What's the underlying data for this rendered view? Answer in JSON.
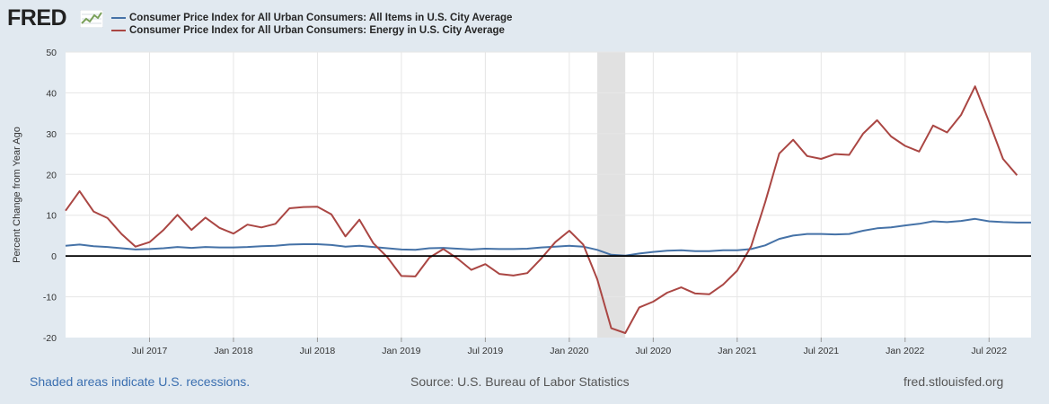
{
  "header": {
    "logo_text": "FRED",
    "logo_icon": "fred-line-chart-icon"
  },
  "legend": [
    {
      "label": "Consumer Price Index for All Urban Consumers: All Items in U.S. City Average",
      "color": "#4572a7"
    },
    {
      "label": "Consumer Price Index for All Urban Consumers: Energy in U.S. City Average",
      "color": "#aa4643"
    }
  ],
  "footer": {
    "left": "Shaded areas indicate U.S. recessions.",
    "center": "Source: U.S. Bureau of Labor Statistics",
    "right": "fred.stlouisfed.org"
  },
  "chart_data": {
    "type": "line",
    "title": "",
    "xlabel": "",
    "ylabel": "Percent Change from Year Ago",
    "ylim": [
      -20,
      50
    ],
    "yticks": [
      50,
      40,
      30,
      20,
      10,
      0,
      -10,
      -20
    ],
    "x_range": [
      "2017-01",
      "2022-10"
    ],
    "xticks": [
      {
        "label": "Jul 2017",
        "month": "2017-07"
      },
      {
        "label": "Jan 2018",
        "month": "2018-01"
      },
      {
        "label": "Jul 2018",
        "month": "2018-07"
      },
      {
        "label": "Jan 2019",
        "month": "2019-01"
      },
      {
        "label": "Jul 2019",
        "month": "2019-07"
      },
      {
        "label": "Jan 2020",
        "month": "2020-01"
      },
      {
        "label": "Jul 2020",
        "month": "2020-07"
      },
      {
        "label": "Jan 2021",
        "month": "2021-01"
      },
      {
        "label": "Jul 2021",
        "month": "2021-07"
      },
      {
        "label": "Jan 2022",
        "month": "2022-01"
      },
      {
        "label": "Jul 2022",
        "month": "2022-07"
      }
    ],
    "recession": {
      "start": "2020-03",
      "end": "2020-04"
    },
    "grid": true,
    "zero_line": true,
    "series": [
      {
        "name": "Consumer Price Index for All Urban Consumers: All Items in U.S. City Average",
        "color": "#4572a7",
        "start": "2017-01",
        "values": [
          2.5,
          2.8,
          2.4,
          2.2,
          1.9,
          1.6,
          1.7,
          1.9,
          2.2,
          2.0,
          2.2,
          2.1,
          2.1,
          2.2,
          2.4,
          2.5,
          2.8,
          2.9,
          2.9,
          2.7,
          2.3,
          2.5,
          2.2,
          1.9,
          1.6,
          1.5,
          1.9,
          2.0,
          1.8,
          1.6,
          1.8,
          1.7,
          1.7,
          1.8,
          2.1,
          2.3,
          2.5,
          2.3,
          1.5,
          0.3,
          0.1,
          0.6,
          1.0,
          1.3,
          1.4,
          1.2,
          1.2,
          1.4,
          1.4,
          1.7,
          2.6,
          4.2,
          5.0,
          5.4,
          5.4,
          5.3,
          5.4,
          6.2,
          6.8,
          7.0,
          7.5,
          7.9,
          8.5,
          8.3,
          8.6,
          9.1,
          8.5,
          8.3,
          8.2,
          8.2
        ]
      },
      {
        "name": "Consumer Price Index for All Urban Consumers: Energy in U.S. City Average",
        "color": "#aa4643",
        "start": "2017-01",
        "values": [
          11.1,
          15.9,
          10.9,
          9.3,
          5.4,
          2.3,
          3.4,
          6.4,
          10.1,
          6.4,
          9.4,
          6.9,
          5.5,
          7.7,
          7.0,
          7.9,
          11.7,
          12.0,
          12.1,
          10.2,
          4.8,
          8.9,
          3.1,
          -0.3,
          -4.9,
          -5.0,
          -0.4,
          1.7,
          -0.6,
          -3.4,
          -2.0,
          -4.4,
          -4.8,
          -4.2,
          -0.6,
          3.4,
          6.2,
          2.8,
          -5.7,
          -17.7,
          -18.9,
          -12.6,
          -11.2,
          -9.0,
          -7.7,
          -9.2,
          -9.4,
          -7.0,
          -3.6,
          2.4,
          13.2,
          25.1,
          28.5,
          24.5,
          23.8,
          25.0,
          24.8,
          30.0,
          33.3,
          29.3,
          27.0,
          25.6,
          32.0,
          30.3,
          34.6,
          41.6,
          32.9,
          23.8,
          19.8
        ]
      }
    ]
  }
}
